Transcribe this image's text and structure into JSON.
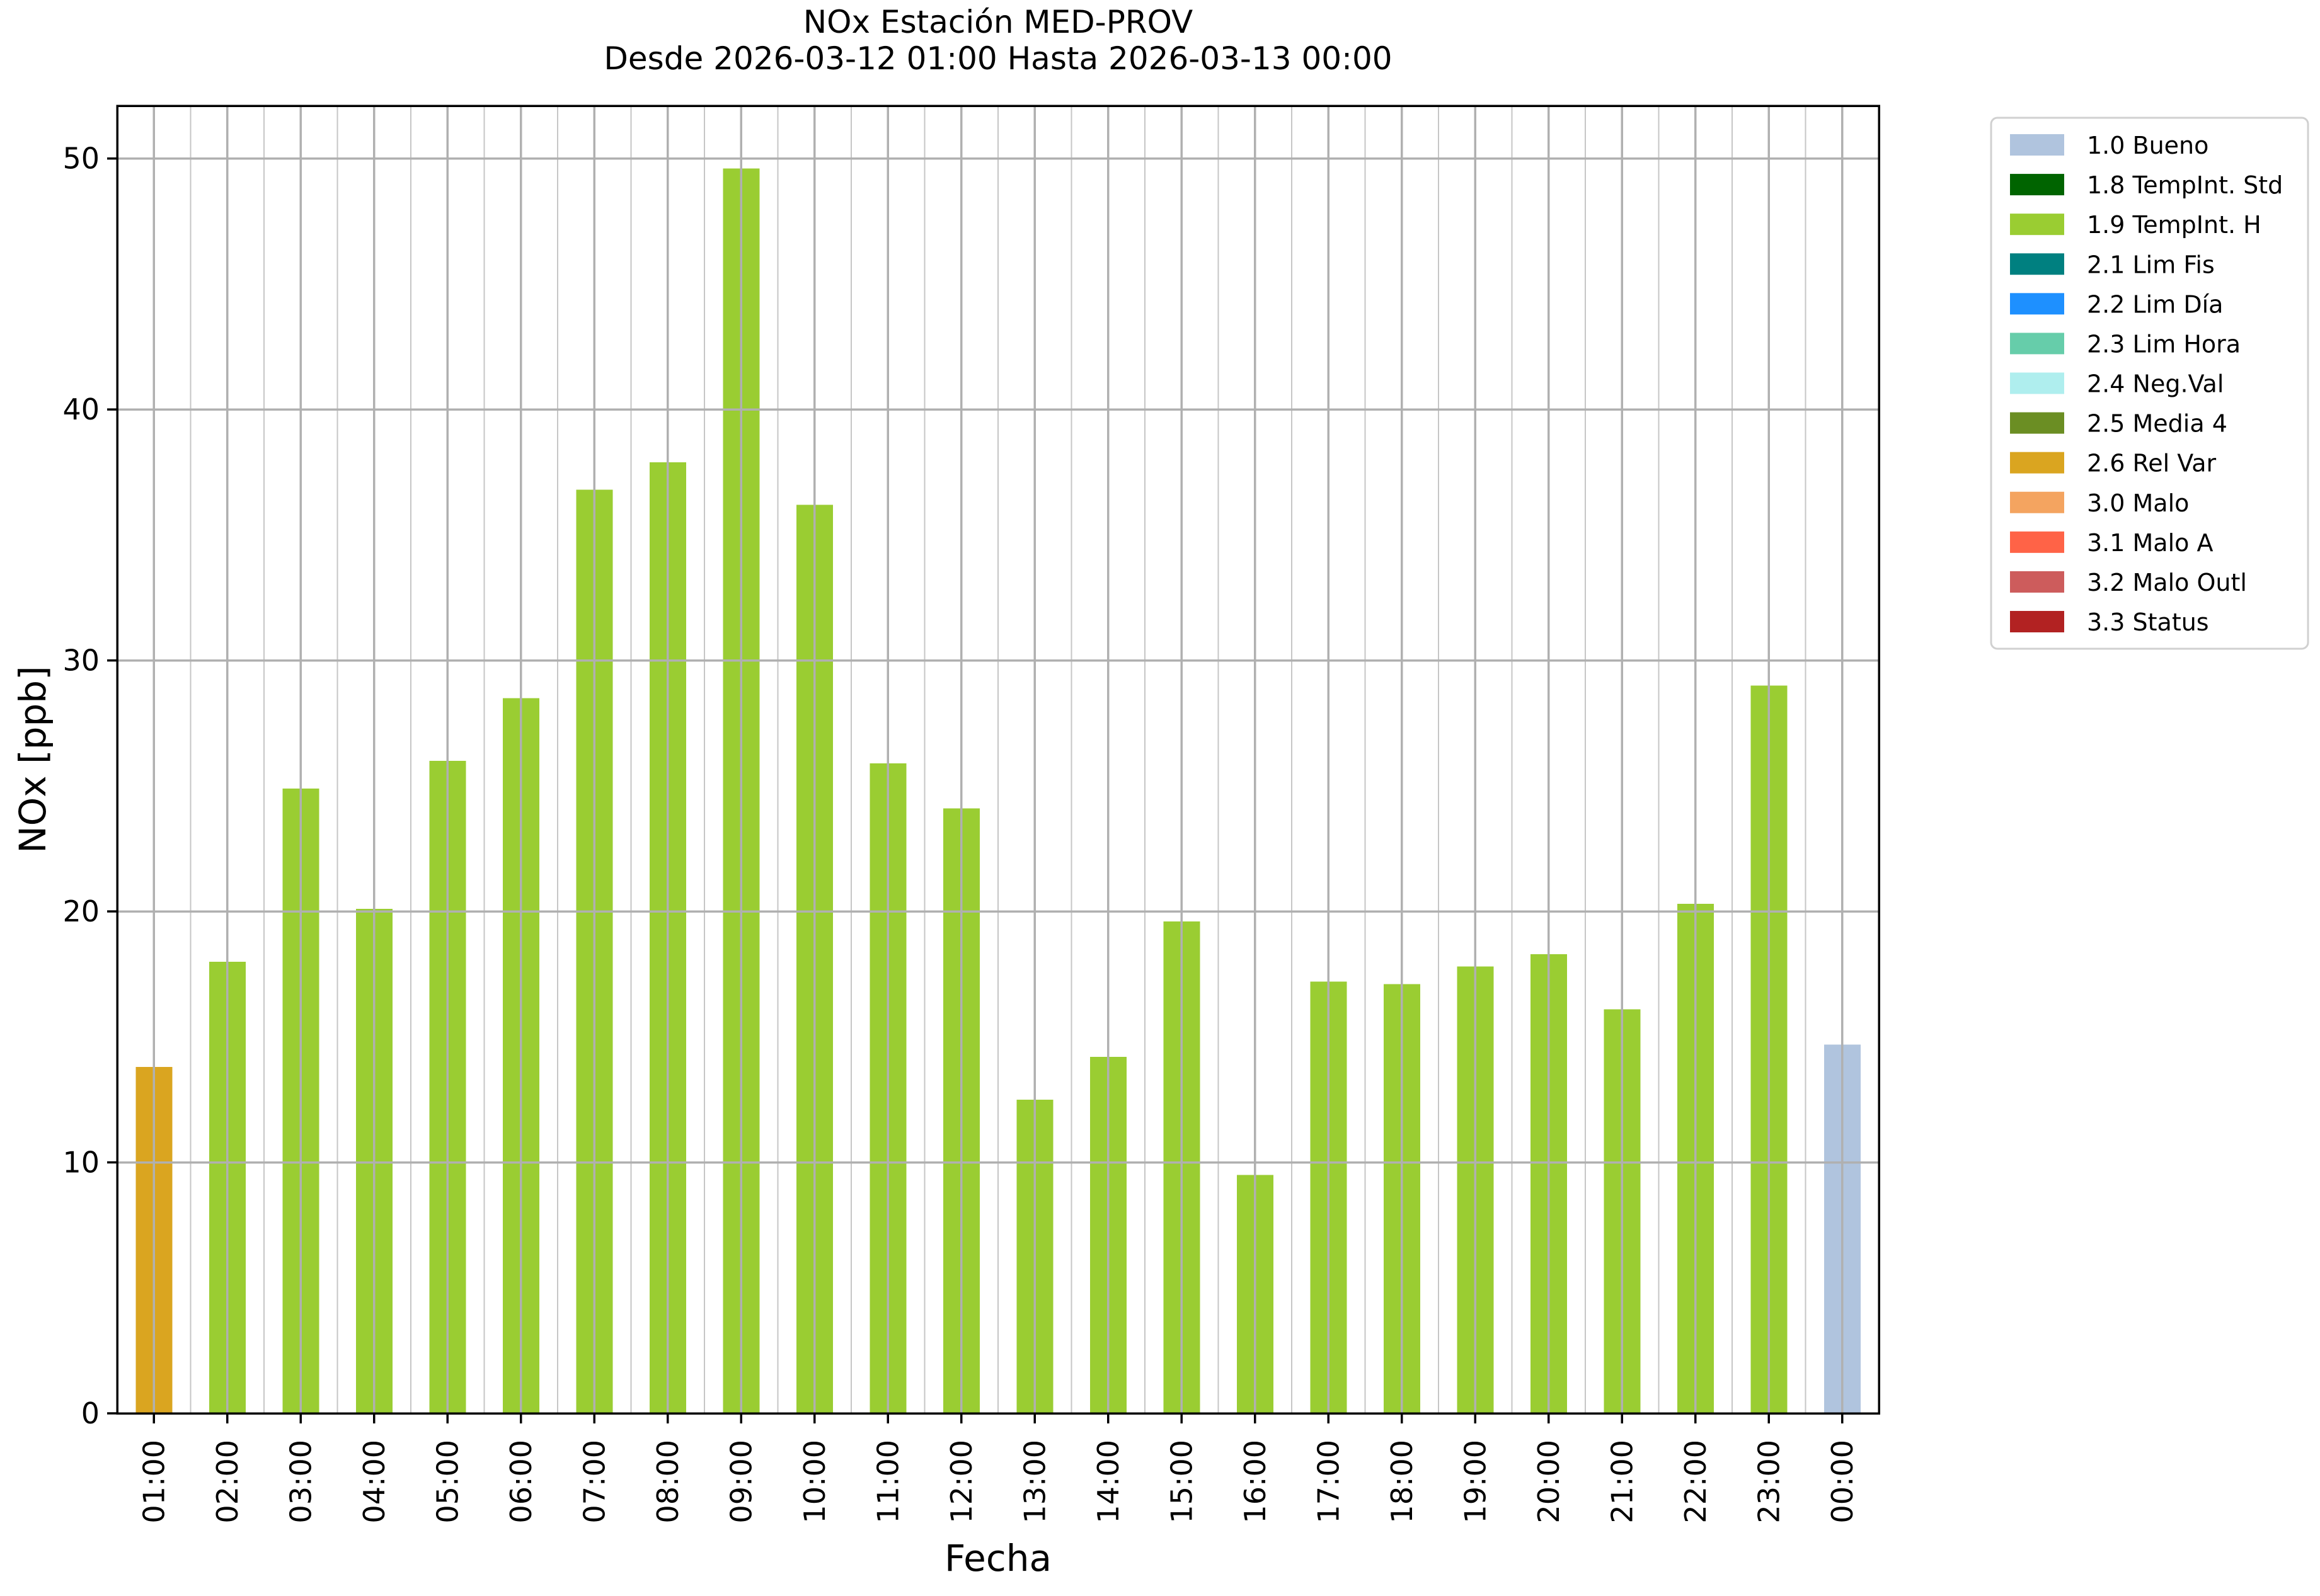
{
  "title": {
    "line1": "NOx Estación MED-PROV",
    "line2": "Desde 2026-03-12 01:00 Hasta 2026-03-13 00:00"
  },
  "axes": {
    "xlabel": "Fecha",
    "ylabel": "NOx [ppb]",
    "y_ticks": [
      0,
      10,
      20,
      30,
      40,
      50
    ],
    "ylim": [
      0,
      52.1
    ],
    "grid": "on"
  },
  "style": {
    "background": "#ffffff",
    "major_grid_color": "#b0b0b0",
    "minor_grid_color": "#c6c6c6",
    "spine_color": "#000000",
    "legend_border_color": "#d0d0d0"
  },
  "legend": {
    "position": "upper right, outside plot",
    "items": [
      {
        "code": "1.0",
        "label": "1.0 Bueno",
        "color": "#b0c4de"
      },
      {
        "code": "1.8",
        "label": "1.8 TempInt. Std",
        "color": "#006400"
      },
      {
        "code": "1.9",
        "label": "1.9 TempInt. H",
        "color": "#9acd32"
      },
      {
        "code": "2.1",
        "label": "2.1 Lim Fis",
        "color": "#008080"
      },
      {
        "code": "2.2",
        "label": "2.2 Lim Día",
        "color": "#1e90ff"
      },
      {
        "code": "2.3",
        "label": "2.3 Lim Hora",
        "color": "#66cdaa"
      },
      {
        "code": "2.4",
        "label": "2.4 Neg.Val",
        "color": "#afeeee"
      },
      {
        "code": "2.5",
        "label": "2.5 Media 4",
        "color": "#6b8e23"
      },
      {
        "code": "2.6",
        "label": "2.6 Rel Var",
        "color": "#daa520"
      },
      {
        "code": "3.0",
        "label": "3.0 Malo",
        "color": "#f4a460"
      },
      {
        "code": "3.1",
        "label": "3.1 Malo A",
        "color": "#ff6347"
      },
      {
        "code": "3.2",
        "label": "3.2 Malo Outl",
        "color": "#cd5c5c"
      },
      {
        "code": "3.3",
        "label": "3.3 Status",
        "color": "#b22222"
      }
    ]
  },
  "chart_data": {
    "type": "bar",
    "title": "NOx Estación MED-PROV — Desde 2026-03-12 01:00 Hasta 2026-03-13 00:00",
    "xlabel": "Fecha",
    "ylabel": "NOx [ppb]",
    "ylim": [
      0,
      52.1
    ],
    "categories": [
      "01:00",
      "02:00",
      "03:00",
      "04:00",
      "05:00",
      "06:00",
      "07:00",
      "08:00",
      "09:00",
      "10:00",
      "11:00",
      "12:00",
      "13:00",
      "14:00",
      "15:00",
      "16:00",
      "17:00",
      "18:00",
      "19:00",
      "20:00",
      "21:00",
      "22:00",
      "23:00",
      "00:00"
    ],
    "values": [
      13.8,
      18.0,
      24.9,
      20.1,
      26.0,
      28.5,
      36.8,
      37.9,
      49.6,
      36.2,
      25.9,
      24.1,
      12.5,
      14.2,
      19.6,
      9.5,
      17.2,
      17.1,
      17.8,
      18.3,
      16.1,
      20.3,
      29.0,
      14.7
    ],
    "bar_status_codes": [
      "2.6",
      "1.9",
      "1.9",
      "1.9",
      "1.9",
      "1.9",
      "1.9",
      "1.9",
      "1.9",
      "1.9",
      "1.9",
      "1.9",
      "1.9",
      "1.9",
      "1.9",
      "1.9",
      "1.9",
      "1.9",
      "1.9",
      "1.9",
      "1.9",
      "1.9",
      "1.9",
      "1.0"
    ]
  }
}
